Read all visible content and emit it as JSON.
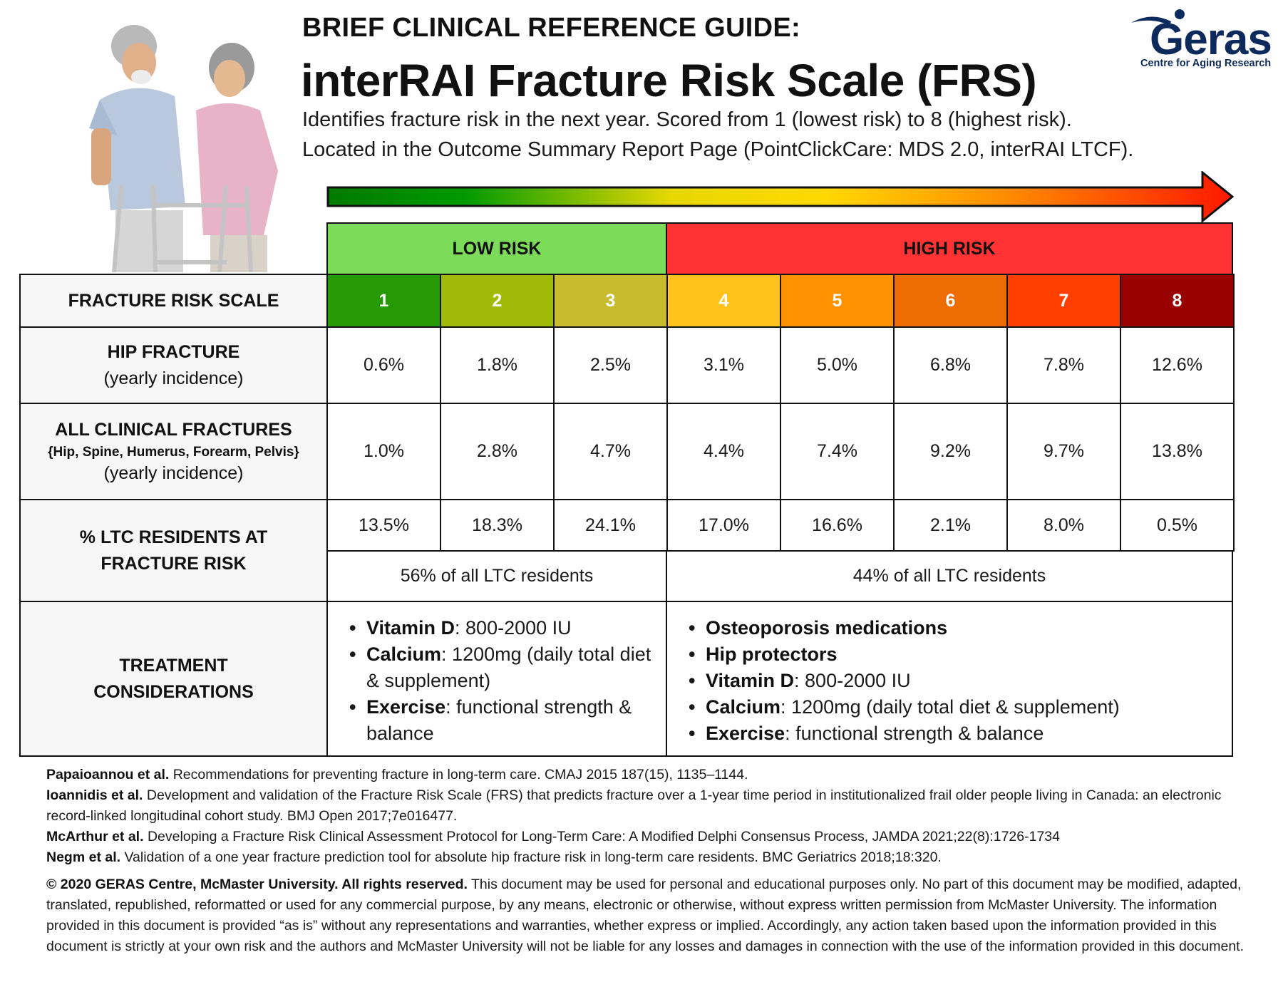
{
  "header": {
    "kicker": "BRIEF CLINICAL REFERENCE GUIDE:",
    "title": "interRAI Fracture Risk Scale (FRS)",
    "subtitle_line1": "Identifies fracture risk in the next year. Scored from 1 (lowest risk) to 8 (highest risk).",
    "subtitle_line2": "Located in the Outcome Summary Report Page (PointClickCare: MDS 2.0, interRAI LTCF)."
  },
  "logo": {
    "wordmark": "Geras",
    "tagline": "Centre for Aging Research",
    "color": "#0d2a5c"
  },
  "photo": {
    "description": "Older couple laughing, man using a walking frame"
  },
  "arrow": {
    "gradient": [
      "#007a00",
      "#009a00",
      "#f6dd00",
      "#ffd500",
      "#ff8800",
      "#ff1a00"
    ]
  },
  "table": {
    "bands": [
      {
        "label": "LOW RISK",
        "color": "#7ddb5a"
      },
      {
        "label": "HIGH RISK",
        "color": "#ff3333"
      }
    ],
    "scale_label": "FRS_LABEL",
    "rows": {
      "scale": {
        "label": "FRACTURE RISK SCALE",
        "scores": [
          "1",
          "2",
          "3",
          "4",
          "5",
          "6",
          "7",
          "8"
        ],
        "colors": [
          "#269a04",
          "#9fbb05",
          "#c9bb2e",
          "#ffc31c",
          "#ff9200",
          "#ee6c04",
          "#ff3f00",
          "#990000"
        ]
      },
      "hip": {
        "label": "HIP FRACTURE",
        "sublabel": "(yearly incidence)",
        "values": [
          "0.6%",
          "1.8%",
          "2.5%",
          "3.1%",
          "5.0%",
          "6.8%",
          "7.8%",
          "12.6%"
        ]
      },
      "all": {
        "label": "ALL CLINICAL FRACTURES",
        "detail": "{Hip, Spine, Humerus, Forearm, Pelvis}",
        "sublabel": "(yearly incidence)",
        "values": [
          "1.0%",
          "2.8%",
          "4.7%",
          "4.4%",
          "7.4%",
          "9.2%",
          "9.7%",
          "13.8%"
        ]
      },
      "ltc": {
        "label_line1": "% LTC RESIDENTS AT",
        "label_line2": "FRACTURE RISK",
        "values": [
          "13.5%",
          "18.3%",
          "24.1%",
          "17.0%",
          "16.6%",
          "2.1%",
          "8.0%",
          "0.5%"
        ],
        "low_total": "56% of all LTC residents",
        "high_total": "44% of all LTC residents"
      },
      "treatment": {
        "label_line1": "TREATMENT",
        "label_line2": "CONSIDERATIONS",
        "low": [
          {
            "bold": "Vitamin D",
            "text": ": 800-2000 IU"
          },
          {
            "bold": "Calcium",
            "text": ": 1200mg (daily total diet & supplement)"
          },
          {
            "bold": "Exercise",
            "text": ": functional strength & balance"
          }
        ],
        "high": [
          {
            "bold": "Osteoporosis medications",
            "text": ""
          },
          {
            "bold": "Hip protectors",
            "text": ""
          },
          {
            "bold": "Vitamin D",
            "text": ": 800-2000 IU"
          },
          {
            "bold": "Calcium",
            "text": ": 1200mg (daily total diet & supplement)"
          },
          {
            "bold": "Exercise",
            "text": ": functional strength & balance"
          }
        ]
      }
    }
  },
  "references": [
    {
      "author": "Papaioannou et al.",
      "text": " Recommendations for preventing fracture in long-term care. CMAJ 2015 187(15), 1135–1144."
    },
    {
      "author": "Ioannidis et al.",
      "text": " Development and validation of the Fracture Risk Scale (FRS) that predicts fracture over a 1-year time period in institutionalized frail older people living in Canada: an electronic record-linked longitudinal cohort study. BMJ Open 2017;7e016477."
    },
    {
      "author": "McArthur et al.",
      "text": " Developing a Fracture Risk Clinical Assessment Protocol for Long-Term Care: A Modified Delphi Consensus Process, JAMDA 2021;22(8):1726-1734"
    },
    {
      "author": "Negm et al.",
      "text": " Validation of a one year fracture prediction tool for absolute hip fracture risk in long-term care residents. BMC Geriatrics 2018;18:320."
    }
  ],
  "copyright": {
    "bold": "© 2020 GERAS Centre, McMaster University. All rights reserved.",
    "text": " This document may be used for personal and educational purposes only. No part of this document may be modified, adapted, translated, republished, reformatted or used for any commercial purpose, by any means, electronic or otherwise, without express written permission from McMaster University. The information provided in this document is provided “as is” without any representations and warranties, whether express or implied. Accordingly, any action taken based upon the information provided in this document is strictly at your own risk and the authors and McMaster University will not be liable for any losses and damages in connection with the use of the information provided in this document."
  }
}
